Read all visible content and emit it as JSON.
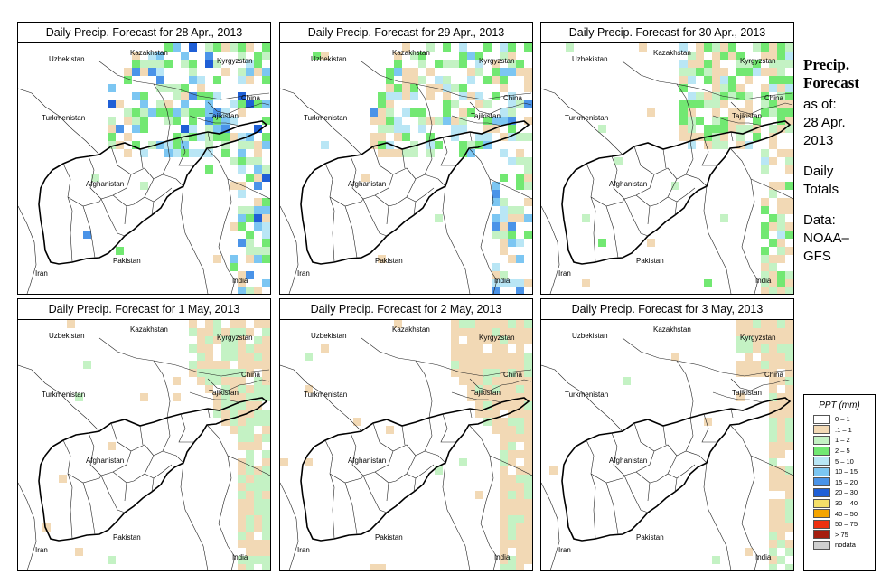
{
  "panels": [
    {
      "title": "Daily Precip. Forecast for 28 Apr., 2013",
      "region": "north-east-and-central",
      "intensity": 1.0
    },
    {
      "title": "Daily Precip. Forecast for 29 Apr., 2013",
      "region": "north-east-and-central",
      "intensity": 0.95
    },
    {
      "title": "Daily Precip. Forecast for 30 Apr., 2013",
      "region": "north-east",
      "intensity": 0.7
    },
    {
      "title": "Daily Precip. Forecast for 1 May, 2013",
      "region": "east-edge",
      "intensity": 0.45
    },
    {
      "title": "Daily Precip. Forecast for 2 May, 2013",
      "region": "east-edge",
      "intensity": 0.3
    },
    {
      "title": "Daily Precip. Forecast for 3 May, 2013",
      "region": "north-east-edge",
      "intensity": 0.35
    }
  ],
  "countries": {
    "uzbekistan": "Uzbekistan",
    "kazakhstan": "Kazakhstan",
    "kyrgyzstan": "Kyrgyzstan",
    "china": "China",
    "turkmenistan": "Turkmenistan",
    "tajikistan": "Tajikistan",
    "afghanistan": "Afghanistan",
    "pakistan": "Pakistan",
    "iran": "Iran",
    "india": "India"
  },
  "side": {
    "title_line1": "Precip.",
    "title_line2": "Forecast",
    "asof_line1": "as of:",
    "asof_line2": "28 Apr.",
    "asof_line3": "2013",
    "daily_line1": "Daily",
    "daily_line2": "Totals",
    "data_line1": "Data:",
    "data_line2": "NOAA–",
    "data_line3": "GFS"
  },
  "legend": {
    "title": "PPT (mm)",
    "items": [
      {
        "label": "0 – 1",
        "color": "#ffffff"
      },
      {
        "label": ".1 – 1",
        "color": "#f2d9b5"
      },
      {
        "label": "1 – 2",
        "color": "#c4f2c4"
      },
      {
        "label": "2 – 5",
        "color": "#72e872"
      },
      {
        "label": "5 – 10",
        "color": "#b9e6f5"
      },
      {
        "label": "10 – 15",
        "color": "#7cc6f2"
      },
      {
        "label": "15 – 20",
        "color": "#4a93e8"
      },
      {
        "label": "20 – 30",
        "color": "#1f5fd6"
      },
      {
        "label": "30 – 40",
        "color": "#f5df68"
      },
      {
        "label": "40 – 50",
        "color": "#f4a400"
      },
      {
        "label": "50 – 75",
        "color": "#ee3010"
      },
      {
        "label": "> 75",
        "color": "#a51f10"
      },
      {
        "label": "nodata",
        "color": "#d0d0d0"
      }
    ]
  }
}
